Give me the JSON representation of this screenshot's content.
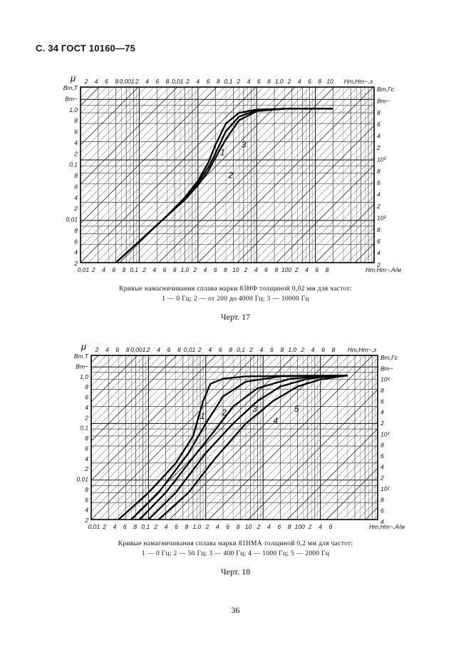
{
  "header": {
    "title": "С. 34 ГОСТ 10160—75"
  },
  "figures": [
    {
      "caption_line1": "Кривые намагничивания сплава марки 83НФ толщиной 0,02  мм для частот:",
      "caption_line2": "1 — 0 Гц; 2 — от 200 до 4000 Гц; 3 — 10000 Гц",
      "label": "Черт. 17",
      "top_axis_symbol": "μ",
      "top_axis_ticks": [
        "2",
        "4",
        "6",
        "8",
        "0,001",
        "2",
        "4",
        "6",
        "8",
        "0,01",
        "2",
        "4",
        "6",
        "8",
        "0,1",
        "2",
        "4",
        "6",
        "8",
        "1,0",
        "2",
        "4",
        "6",
        "8",
        "10"
      ],
      "top_axis_title": "Hm,Hm~,э",
      "bottom_axis_ticks": [
        "0,01",
        "2",
        "4",
        "6",
        "8",
        "0,1",
        "2",
        "4",
        "6",
        "8",
        "1,0",
        "2",
        "4",
        "6",
        "8",
        "10",
        "2",
        "4",
        "6",
        "8",
        "100",
        "2",
        "4",
        "6",
        "8"
      ],
      "bottom_axis_title": "Hm,Hm~,А/м",
      "left_axis_labels": [
        "Bm,Т",
        "Bm~",
        "1,0",
        "8",
        "6",
        "4",
        "2",
        "0,1",
        "8",
        "6",
        "4",
        "2",
        "0,01",
        "8",
        "6",
        "4",
        "2"
      ],
      "right_axis_labels": [
        "Bm,Гс",
        "Bm~",
        "8",
        "6",
        "4",
        "2",
        "10³",
        "8",
        "6",
        "4",
        "2",
        "10²",
        "8",
        "6",
        "4",
        "2"
      ],
      "curve_labels": [
        "1",
        "2",
        "3"
      ],
      "chart_data": {
        "type": "line",
        "title": "",
        "xlabel": "Hm,Hm~,А/м",
        "ylabel": "Bm,Т",
        "xscale": "log",
        "yscale": "log",
        "xlim": [
          0.01,
          1000
        ],
        "ylim": [
          0.002,
          1.6
        ],
        "series": [
          {
            "name": "1",
            "x": [
              0.04,
              0.1,
              0.3,
              0.6,
              1.0,
              1.5,
              2.0,
              3.0,
              5.0,
              10,
              30,
              200
            ],
            "y": [
              0.002,
              0.0045,
              0.012,
              0.024,
              0.045,
              0.09,
              0.18,
              0.4,
              0.6,
              0.68,
              0.7,
              0.7
            ]
          },
          {
            "name": "2",
            "x": [
              0.04,
              0.1,
              0.3,
              0.6,
              1.0,
              1.5,
              2.0,
              3.0,
              5.0,
              10,
              30,
              200
            ],
            "y": [
              0.002,
              0.0045,
              0.012,
              0.022,
              0.038,
              0.065,
              0.11,
              0.22,
              0.45,
              0.64,
              0.7,
              0.7
            ]
          },
          {
            "name": "3",
            "x": [
              0.04,
              0.1,
              0.3,
              0.6,
              1.0,
              1.5,
              2.0,
              3.0,
              5.0,
              10,
              30,
              200
            ],
            "y": [
              0.002,
              0.0045,
              0.012,
              0.023,
              0.042,
              0.075,
              0.13,
              0.3,
              0.52,
              0.66,
              0.7,
              0.7
            ]
          }
        ]
      }
    },
    {
      "caption_line1": "Кривые намагничивания сплава марки 81НМА толщиной 0,2  мм для частот:",
      "caption_line2": "1 — 0 Гц; 2 — 50 Гц; 3 — 400 Гц; 4 — 1000 Гц; 5 — 2000 Гц",
      "label": "Черт. 18",
      "top_axis_symbol": "μ",
      "top_axis_ticks": [
        "2",
        "4",
        "6",
        "8",
        "0,001",
        "2",
        "4",
        "6",
        "8",
        "0,01",
        "2",
        "4",
        "6",
        "8",
        "0,1",
        "2",
        "4",
        "6",
        "8",
        "1,0",
        "2",
        "4",
        "6",
        "8"
      ],
      "top_axis_title": "Hm,Hm~,э",
      "bottom_axis_ticks": [
        "0,01",
        "2",
        "4",
        "6",
        "8",
        "0,1",
        "2",
        "4",
        "6",
        "8",
        "1,0",
        "2",
        "4",
        "6",
        "8",
        "10",
        "2",
        "4",
        "6",
        "8",
        "100",
        "2",
        "4",
        "6"
      ],
      "bottom_axis_title": "Hm,Hm~,А/м",
      "left_axis_labels": [
        "Bm,Т",
        "Bm~",
        "1,0",
        "8",
        "6",
        "4",
        "2",
        "0,1",
        "8",
        "6",
        "4",
        "2",
        "0,01",
        "8",
        "6",
        "4",
        "2"
      ],
      "right_axis_labels": [
        "Bm,Гс",
        "Bm~",
        "10⁴",
        "8",
        "6",
        "4",
        "2",
        "10³",
        "8",
        "6",
        "4",
        "2",
        "10²",
        "8",
        "6",
        "4"
      ],
      "curve_labels": [
        "1",
        "2",
        "3",
        "4",
        "5"
      ],
      "chart_data": {
        "type": "line",
        "title": "",
        "xlabel": "Hm,Hm~,А/м",
        "ylabel": "Bm,Т",
        "xscale": "log",
        "yscale": "log",
        "xlim": [
          0.01,
          1000
        ],
        "ylim": [
          0.002,
          1.6
        ],
        "series": [
          {
            "name": "1",
            "x": [
              0.03,
              0.1,
              0.3,
              0.6,
              0.9,
              1.2,
              2,
              5,
              50,
              300
            ],
            "y": [
              0.002,
              0.006,
              0.02,
              0.06,
              0.25,
              0.5,
              0.62,
              0.68,
              0.7,
              0.7
            ]
          },
          {
            "name": "2",
            "x": [
              0.05,
              0.15,
              0.5,
              1.0,
              2.0,
              5,
              20,
              100,
              300
            ],
            "y": [
              0.002,
              0.006,
              0.03,
              0.1,
              0.3,
              0.55,
              0.68,
              0.7,
              0.7
            ]
          },
          {
            "name": "3",
            "x": [
              0.07,
              0.2,
              0.6,
              1.5,
              3,
              8,
              30,
              150,
              300
            ],
            "y": [
              0.002,
              0.006,
              0.025,
              0.08,
              0.2,
              0.42,
              0.62,
              0.7,
              0.7
            ]
          },
          {
            "name": "4",
            "x": [
              0.1,
              0.3,
              1.0,
              3,
              8,
              20,
              60,
              200,
              300
            ],
            "y": [
              0.002,
              0.006,
              0.03,
              0.1,
              0.25,
              0.45,
              0.62,
              0.7,
              0.7
            ]
          },
          {
            "name": "5",
            "x": [
              0.15,
              0.5,
              1.5,
              5,
              15,
              40,
              100,
              250,
              300
            ],
            "y": [
              0.002,
              0.006,
              0.025,
              0.1,
              0.25,
              0.45,
              0.6,
              0.69,
              0.7
            ]
          }
        ]
      }
    }
  ],
  "page_number": "36"
}
